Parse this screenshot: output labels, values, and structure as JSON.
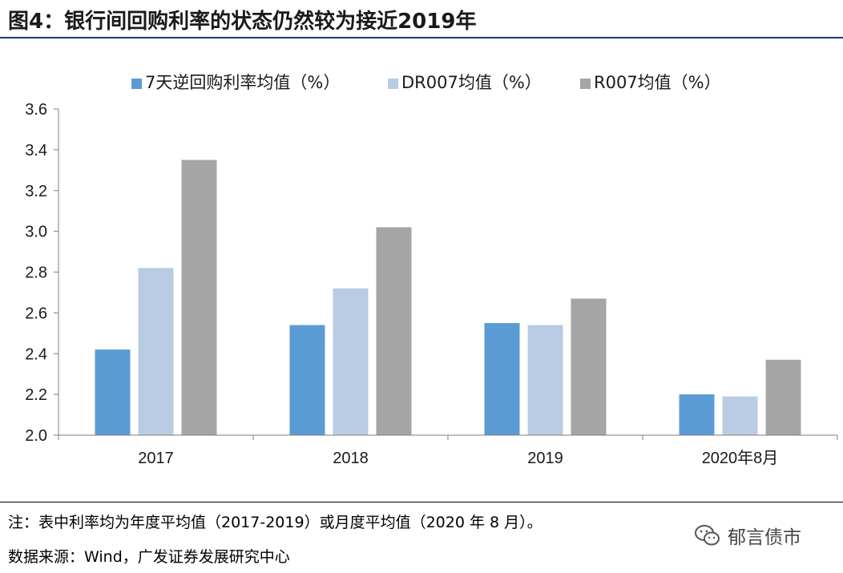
{
  "header": {
    "title": "图4：银行间回购利率的状态仍然较为接近2019年"
  },
  "chart_data": {
    "type": "bar",
    "categories": [
      "2017",
      "2018",
      "2019",
      "2020年8月"
    ],
    "series": [
      {
        "name": "7天逆回购利率均值（%）",
        "color": "#5b9bd5",
        "values": [
          2.42,
          2.54,
          2.55,
          2.2
        ]
      },
      {
        "name": "DR007均值（%）",
        "color": "#b8cce4",
        "values": [
          2.82,
          2.72,
          2.54,
          2.19
        ]
      },
      {
        "name": "R007均值（%）",
        "color": "#a5a5a5",
        "values": [
          3.35,
          3.02,
          2.67,
          2.37
        ]
      }
    ],
    "yticks": [
      "2.0",
      "2.2",
      "2.4",
      "2.6",
      "2.8",
      "3.0",
      "3.2",
      "3.4",
      "3.6"
    ],
    "ylim": [
      2.0,
      3.6
    ],
    "grid": false,
    "legend": "top"
  },
  "notes": {
    "note": "注：表中利率均为年度平均值（2017-2019）或月度平均值（2020 年 8 月）。",
    "source": "数据来源：Wind，广发证券发展研究中心"
  },
  "watermark": {
    "text": "郁言债市",
    "icon": "wechat-icon"
  }
}
